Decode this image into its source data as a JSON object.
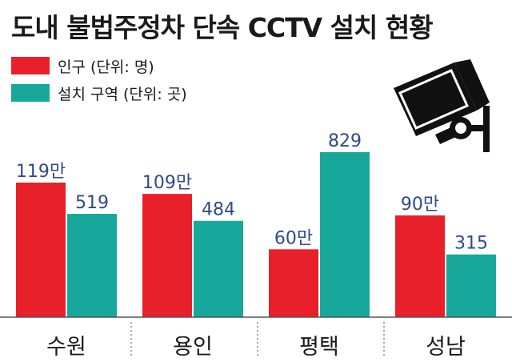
{
  "title": "도내 불법주정차 단속 CCTV 설치 현황",
  "legend": [
    {
      "label": "인구 (단위: 명)",
      "color": "#e8202a"
    },
    {
      "label": "설치 구역 (단위: 곳)",
      "color": "#17a79b"
    }
  ],
  "icon": "cctv-camera-icon",
  "chart_data": {
    "type": "bar",
    "title": "도내 불법주정차 단속 CCTV 설치 현황",
    "categories": [
      "수원",
      "용인",
      "평택",
      "성남"
    ],
    "series": [
      {
        "name": "인구 (단위: 명)",
        "values": [
          1190000,
          1090000,
          600000,
          900000
        ],
        "labels": [
          "119만",
          "109만",
          "60만",
          "90만"
        ],
        "color": "#e8202a"
      },
      {
        "name": "설치 구역 (단위: 곳)",
        "values": [
          519,
          484,
          829,
          315
        ],
        "labels": [
          "519",
          "484",
          "829",
          "315"
        ],
        "color": "#17a79b"
      }
    ],
    "value_label_color": "#2f4a8a",
    "grid": false,
    "legend_position": "top-left"
  }
}
